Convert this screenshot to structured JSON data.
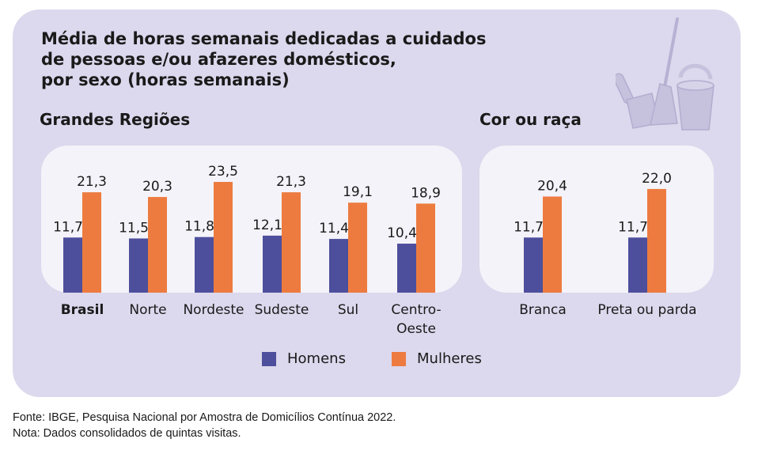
{
  "title_lines": [
    "Média de horas semanais dedicadas a cuidados",
    "de pessoas e/ou afazeres domésticos,",
    "por sexo (horas semanais)"
  ],
  "colors": {
    "homens": "#4d4f9c",
    "mulheres": "#ed7b3f",
    "card": "#dcd8ed",
    "panel": "#f4f3f9"
  },
  "legend": {
    "homens": "Homens",
    "mulheres": "Mulheres"
  },
  "footer": {
    "source": "Fonte: IBGE, Pesquisa Nacional por Amostra de Domicílios Contínua 2022.",
    "note": "Nota: Dados consolidados de quintas visitas."
  },
  "chart_data": [
    {
      "type": "bar",
      "title": "Grandes Regiões",
      "categories": [
        "Brasil",
        "Norte",
        "Nordeste",
        "Sudeste",
        "Sul",
        "Centro-Oeste"
      ],
      "category_label_lines": [
        [
          "Brasil"
        ],
        [
          "Norte"
        ],
        [
          "Nordeste"
        ],
        [
          "Sudeste"
        ],
        [
          "Sul"
        ],
        [
          "Centro-",
          "Oeste"
        ]
      ],
      "series": [
        {
          "name": "Homens",
          "values": [
            11.7,
            11.5,
            11.8,
            12.1,
            11.4,
            10.4
          ],
          "labels": [
            "11,7",
            "11,5",
            "11,8",
            "12,1",
            "11,4",
            "10,4"
          ]
        },
        {
          "name": "Mulheres",
          "values": [
            21.3,
            20.3,
            23.5,
            21.3,
            19.1,
            18.9
          ],
          "labels": [
            "21,3",
            "20,3",
            "23,5",
            "21,3",
            "19,1",
            "18,9"
          ]
        }
      ]
    },
    {
      "type": "bar",
      "title": "Cor ou raça",
      "categories": [
        "Branca",
        "Preta ou parda"
      ],
      "category_label_lines": [
        [
          "Branca"
        ],
        [
          "Preta ou parda"
        ]
      ],
      "series": [
        {
          "name": "Homens",
          "values": [
            11.7,
            11.7
          ],
          "labels": [
            "11,7",
            "11,7"
          ]
        },
        {
          "name": "Mulheres",
          "values": [
            20.4,
            22.0
          ],
          "labels": [
            "20,4",
            "22,0"
          ]
        }
      ]
    }
  ]
}
